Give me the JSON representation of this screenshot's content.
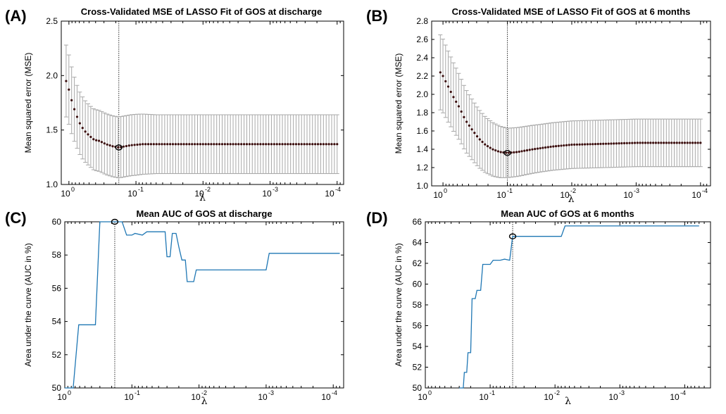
{
  "panels": [
    {
      "letter": "(A)",
      "title": "Cross-Validated MSE of LASSO Fit of GOS at discharge",
      "ylabel": "Mean squared error (MSE)",
      "xlabel": "λ",
      "yticks": [
        "1.0",
        "1.5",
        "2.0",
        "2.5"
      ],
      "xticks": [
        {
          "base": "10",
          "exp": "0"
        },
        {
          "base": "10",
          "exp": "-1"
        },
        {
          "base": "10",
          "exp": "-2"
        },
        {
          "base": "10",
          "exp": "-3"
        },
        {
          "base": "10",
          "exp": "-4"
        }
      ]
    },
    {
      "letter": "(B)",
      "title": "Cross-Validated MSE of LASSO Fit of GOS at 6 months",
      "ylabel": "Mean squared error (MSE)",
      "xlabel": "λ",
      "yticks": [
        "1.0",
        "1.2",
        "1.4",
        "1.6",
        "1.8",
        "2.0",
        "2.2",
        "2.4",
        "2.6",
        "2.8"
      ],
      "xticks": [
        {
          "base": "10",
          "exp": "0"
        },
        {
          "base": "10",
          "exp": "-1"
        },
        {
          "base": "10",
          "exp": "-2"
        },
        {
          "base": "10",
          "exp": "-3"
        },
        {
          "base": "10",
          "exp": "-4"
        }
      ]
    },
    {
      "letter": "(C)",
      "title": "Mean AUC of GOS at discharge",
      "ylabel": "Area under the curve (AUC in %)",
      "xlabel": "λ",
      "yticks": [
        "50",
        "52",
        "54",
        "56",
        "58",
        "60"
      ],
      "xticks": [
        {
          "base": "10",
          "exp": "0"
        },
        {
          "base": "10",
          "exp": "-1"
        },
        {
          "base": "10",
          "exp": "-2"
        },
        {
          "base": "10",
          "exp": "-3"
        },
        {
          "base": "10",
          "exp": "-4"
        }
      ]
    },
    {
      "letter": "(D)",
      "title": "Mean AUC of GOS at 6 months",
      "ylabel": "Area under the curve (AUC in %)",
      "xlabel": "λ",
      "yticks": [
        "50",
        "52",
        "54",
        "56",
        "58",
        "60",
        "62",
        "64",
        "66"
      ],
      "xticks": [
        {
          "base": "10",
          "exp": "0"
        },
        {
          "base": "10",
          "exp": "-1"
        },
        {
          "base": "10",
          "exp": "-2"
        },
        {
          "base": "10",
          "exp": "-3"
        },
        {
          "base": "10",
          "exp": "-4"
        }
      ]
    }
  ],
  "chart_data": [
    {
      "type": "scatter",
      "title": "Cross-Validated MSE of LASSO Fit of GOS at discharge",
      "xlabel": "λ",
      "ylabel": "Mean squared error (MSE)",
      "xscale": "log-reversed",
      "xlim": [
        1.3,
        8e-05
      ],
      "ylim": [
        1.0,
        2.5
      ],
      "selected_lambda": 0.18,
      "selected_mse": 1.34,
      "series": [
        {
          "x_range": [
            1.1,
            0.0001
          ],
          "n_points": 100,
          "mean_profile": [
            [
              1.1,
              1.95
            ],
            [
              1.0,
              1.87
            ],
            [
              0.9,
              1.76
            ],
            [
              0.8,
              1.66
            ],
            [
              0.7,
              1.57
            ],
            [
              0.6,
              1.5
            ],
            [
              0.5,
              1.45
            ],
            [
              0.42,
              1.41
            ],
            [
              0.35,
              1.4
            ],
            [
              0.28,
              1.37
            ],
            [
              0.22,
              1.35
            ],
            [
              0.18,
              1.34
            ],
            [
              0.12,
              1.36
            ],
            [
              0.08,
              1.37
            ],
            [
              0.05,
              1.37
            ],
            [
              0.0001,
              1.37
            ]
          ],
          "halfwidth_profile": [
            [
              1.1,
              0.33
            ],
            [
              0.8,
              0.29
            ],
            [
              0.5,
              0.28
            ],
            [
              0.3,
              0.28
            ],
            [
              0.18,
              0.28
            ],
            [
              0.1,
              0.28
            ],
            [
              0.05,
              0.27
            ],
            [
              0.0001,
              0.27
            ]
          ]
        }
      ]
    },
    {
      "type": "scatter",
      "title": "Cross-Validated MSE of LASSO Fit of GOS at 6 months",
      "xlabel": "λ",
      "ylabel": "Mean squared error (MSE)",
      "xscale": "log-reversed",
      "xlim": [
        1.5,
        7e-05
      ],
      "ylim": [
        1.0,
        2.8
      ],
      "selected_lambda": 0.1,
      "selected_mse": 1.36,
      "series": [
        {
          "x_range": [
            1.1,
            0.0001
          ],
          "n_points": 100,
          "mean_profile": [
            [
              1.1,
              2.24
            ],
            [
              1.0,
              2.2
            ],
            [
              0.85,
              2.1
            ],
            [
              0.7,
              1.98
            ],
            [
              0.55,
              1.85
            ],
            [
              0.45,
              1.72
            ],
            [
              0.35,
              1.61
            ],
            [
              0.28,
              1.52
            ],
            [
              0.22,
              1.45
            ],
            [
              0.17,
              1.4
            ],
            [
              0.13,
              1.37
            ],
            [
              0.1,
              1.36
            ],
            [
              0.07,
              1.37
            ],
            [
              0.04,
              1.4
            ],
            [
              0.02,
              1.43
            ],
            [
              0.01,
              1.45
            ],
            [
              0.003,
              1.46
            ],
            [
              0.001,
              1.47
            ],
            [
              0.0001,
              1.47
            ]
          ],
          "halfwidth_profile": [
            [
              1.1,
              0.41
            ],
            [
              0.5,
              0.35
            ],
            [
              0.2,
              0.3
            ],
            [
              0.1,
              0.27
            ],
            [
              0.03,
              0.26
            ],
            [
              0.0001,
              0.26
            ]
          ]
        }
      ]
    },
    {
      "type": "line",
      "title": "Mean AUC of GOS at discharge",
      "xlabel": "λ",
      "ylabel": "Area under the curve (AUC in %)",
      "xscale": "log-reversed",
      "xlim": [
        1.0,
        7e-05
      ],
      "ylim": [
        50,
        60
      ],
      "selected_lambda": 0.18,
      "selected_auc": 60,
      "series": [
        {
          "points": [
            [
              1.0,
              50
            ],
            [
              0.75,
              50
            ],
            [
              0.62,
              53.8
            ],
            [
              0.35,
              53.8
            ],
            [
              0.3,
              60
            ],
            [
              0.14,
              60
            ],
            [
              0.12,
              59.2
            ],
            [
              0.1,
              59.2
            ],
            [
              0.09,
              59.3
            ],
            [
              0.07,
              59.2
            ],
            [
              0.06,
              59.4
            ],
            [
              0.032,
              59.4
            ],
            [
              0.03,
              57.9
            ],
            [
              0.027,
              57.9
            ],
            [
              0.025,
              59.3
            ],
            [
              0.022,
              59.3
            ],
            [
              0.02,
              58.5
            ],
            [
              0.018,
              57.7
            ],
            [
              0.016,
              57.7
            ],
            [
              0.015,
              56.4
            ],
            [
              0.012,
              56.4
            ],
            [
              0.011,
              57.1
            ],
            [
              0.009,
              57.1
            ],
            [
              0.001,
              57.1
            ],
            [
              0.0009,
              58.1
            ],
            [
              8e-05,
              58.1
            ]
          ]
        }
      ]
    },
    {
      "type": "line",
      "title": "Mean AUC of GOS at 6 months",
      "xlabel": "λ",
      "ylabel": "Area under the curve (AUC in %)",
      "xscale": "log-reversed",
      "xlim": [
        1.0,
        4e-05
      ],
      "ylim": [
        50,
        66
      ],
      "selected_lambda": 0.045,
      "selected_auc": 64.6,
      "series": [
        {
          "points": [
            [
              0.3,
              50
            ],
            [
              0.26,
              50
            ],
            [
              0.25,
              51.5
            ],
            [
              0.23,
              51.5
            ],
            [
              0.22,
              53.4
            ],
            [
              0.2,
              53.4
            ],
            [
              0.19,
              58.6
            ],
            [
              0.17,
              58.6
            ],
            [
              0.16,
              59.4
            ],
            [
              0.14,
              59.4
            ],
            [
              0.13,
              61.9
            ],
            [
              0.1,
              61.9
            ],
            [
              0.09,
              62.3
            ],
            [
              0.07,
              62.3
            ],
            [
              0.06,
              62.4
            ],
            [
              0.05,
              62.3
            ],
            [
              0.045,
              64.6
            ],
            [
              0.012,
              64.6
            ],
            [
              0.01,
              64.6
            ],
            [
              0.008,
              64.6
            ],
            [
              0.007,
              65.6
            ],
            [
              6e-05,
              65.6
            ]
          ]
        }
      ]
    }
  ]
}
